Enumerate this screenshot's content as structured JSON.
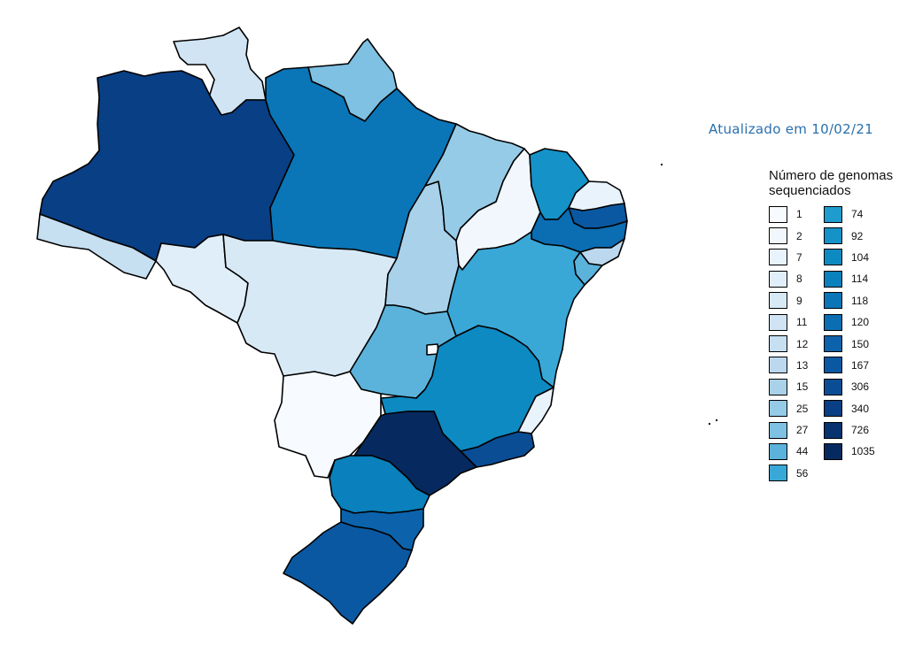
{
  "updated_label": "Atualizado em 10/02/21",
  "legend": {
    "title_line1": "Número de genomas",
    "title_line2": "sequenciados",
    "items": [
      {
        "value": "1",
        "color": "#f7fbff"
      },
      {
        "value": "2",
        "color": "#f1f7fd"
      },
      {
        "value": "7",
        "color": "#e9f3fb"
      },
      {
        "value": "8",
        "color": "#e0eef9"
      },
      {
        "value": "9",
        "color": "#d8e9f6"
      },
      {
        "value": "11",
        "color": "#d0e4f3"
      },
      {
        "value": "12",
        "color": "#c6dff1"
      },
      {
        "value": "13",
        "color": "#bcd8ee"
      },
      {
        "value": "15",
        "color": "#a9d1ea"
      },
      {
        "value": "25",
        "color": "#96cbe7"
      },
      {
        "value": "27",
        "color": "#7ec1e2"
      },
      {
        "value": "44",
        "color": "#5bb3dc"
      },
      {
        "value": "56",
        "color": "#3aa8d7"
      },
      {
        "value": "74",
        "color": "#1f9ccf"
      },
      {
        "value": "92",
        "color": "#1592c8"
      },
      {
        "value": "104",
        "color": "#0e8ac2"
      },
      {
        "value": "114",
        "color": "#0a80bc"
      },
      {
        "value": "118",
        "color": "#0a76b7"
      },
      {
        "value": "120",
        "color": "#0b6db2"
      },
      {
        "value": "150",
        "color": "#0c63ab"
      },
      {
        "value": "167",
        "color": "#0b58a2"
      },
      {
        "value": "306",
        "color": "#0a4d95"
      },
      {
        "value": "340",
        "color": "#093f84"
      },
      {
        "value": "726",
        "color": "#07336f"
      },
      {
        "value": "1035",
        "color": "#062a5f"
      }
    ]
  },
  "map": {
    "states": [
      {
        "name": "RR",
        "count": 11
      },
      {
        "name": "AP",
        "count": 27
      },
      {
        "name": "AM",
        "count": 340
      },
      {
        "name": "PA",
        "count": 118
      },
      {
        "name": "AC",
        "count": 12
      },
      {
        "name": "RO",
        "count": 8
      },
      {
        "name": "MT",
        "count": 9
      },
      {
        "name": "TO",
        "count": 15
      },
      {
        "name": "MA",
        "count": 25
      },
      {
        "name": "PI",
        "count": 2
      },
      {
        "name": "CE",
        "count": 92
      },
      {
        "name": "RN",
        "count": 7
      },
      {
        "name": "PB",
        "count": 167
      },
      {
        "name": "PE",
        "count": 120
      },
      {
        "name": "AL",
        "count": 13
      },
      {
        "name": "SE",
        "count": 44
      },
      {
        "name": "BA",
        "count": 56
      },
      {
        "name": "GO",
        "count": 44
      },
      {
        "name": "DF",
        "count": 1
      },
      {
        "name": "MG",
        "count": 104
      },
      {
        "name": "ES",
        "count": 7
      },
      {
        "name": "RJ",
        "count": 306
      },
      {
        "name": "MS",
        "count": 1
      },
      {
        "name": "SP",
        "count": 1035
      },
      {
        "name": "PR",
        "count": 114
      },
      {
        "name": "SC",
        "count": 150
      },
      {
        "name": "RS",
        "count": 167
      }
    ]
  }
}
